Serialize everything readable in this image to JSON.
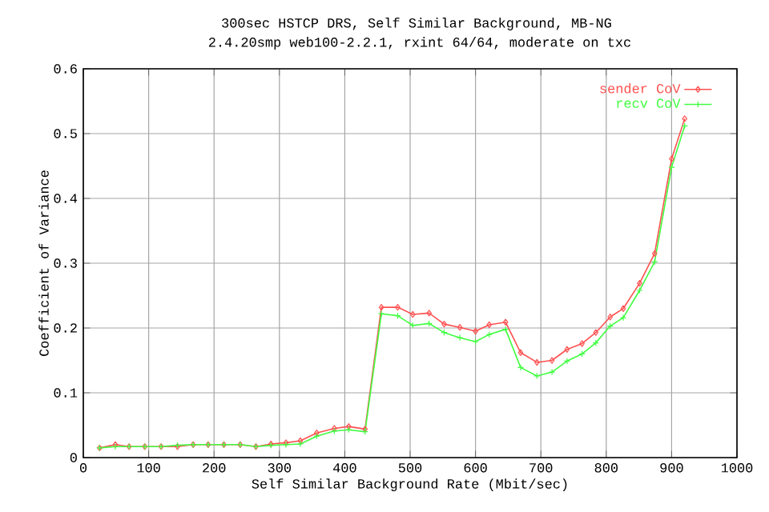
{
  "chart_data": {
    "type": "line",
    "title": "300sec HSTCP DRS, Self Similar Background, MB-NG",
    "subtitle": "2.4.20smp web100-2.2.1, rxint 64/64, moderate on txc",
    "xlabel": "Self Similar Background Rate (Mbit/sec)",
    "ylabel": "Coefficient of Variance",
    "x": [
      25,
      49,
      70,
      94,
      119,
      144,
      168,
      191,
      215,
      240,
      264,
      287,
      310,
      332,
      357,
      384,
      406,
      431,
      456,
      481,
      504,
      529,
      552,
      576,
      600,
      621,
      646,
      669,
      694,
      717,
      740,
      763,
      784,
      806,
      826,
      851,
      874,
      900,
      920
    ],
    "series": [
      {
        "name": "sender CoV",
        "color": "#ff5050",
        "marker": "diamond",
        "values": [
          0.015,
          0.02,
          0.017,
          0.017,
          0.017,
          0.017,
          0.02,
          0.02,
          0.02,
          0.02,
          0.017,
          0.021,
          0.023,
          0.026,
          0.038,
          0.045,
          0.048,
          0.044,
          0.232,
          0.232,
          0.221,
          0.223,
          0.206,
          0.201,
          0.195,
          0.205,
          0.209,
          0.162,
          0.147,
          0.15,
          0.167,
          0.176,
          0.193,
          0.217,
          0.23,
          0.269,
          0.315,
          0.461,
          0.523
        ]
      },
      {
        "name": "recv CoV",
        "color": "#40ff40",
        "marker": "cross",
        "values": [
          0.015,
          0.017,
          0.017,
          0.017,
          0.017,
          0.019,
          0.02,
          0.02,
          0.02,
          0.02,
          0.017,
          0.019,
          0.02,
          0.021,
          0.033,
          0.041,
          0.043,
          0.04,
          0.222,
          0.219,
          0.204,
          0.207,
          0.193,
          0.185,
          0.179,
          0.19,
          0.198,
          0.139,
          0.126,
          0.132,
          0.149,
          0.16,
          0.177,
          0.203,
          0.216,
          0.258,
          0.302,
          0.448,
          0.512
        ]
      }
    ],
    "xlim": [
      0,
      1000
    ],
    "xticks": [
      0,
      100,
      200,
      300,
      400,
      500,
      600,
      700,
      800,
      900,
      1000
    ],
    "ylim": [
      0,
      0.6
    ],
    "yticks": [
      0,
      0.1,
      0.2,
      0.3,
      0.4,
      0.5,
      0.6
    ],
    "grid": true,
    "legend": "top right",
    "line_style": "solid"
  }
}
